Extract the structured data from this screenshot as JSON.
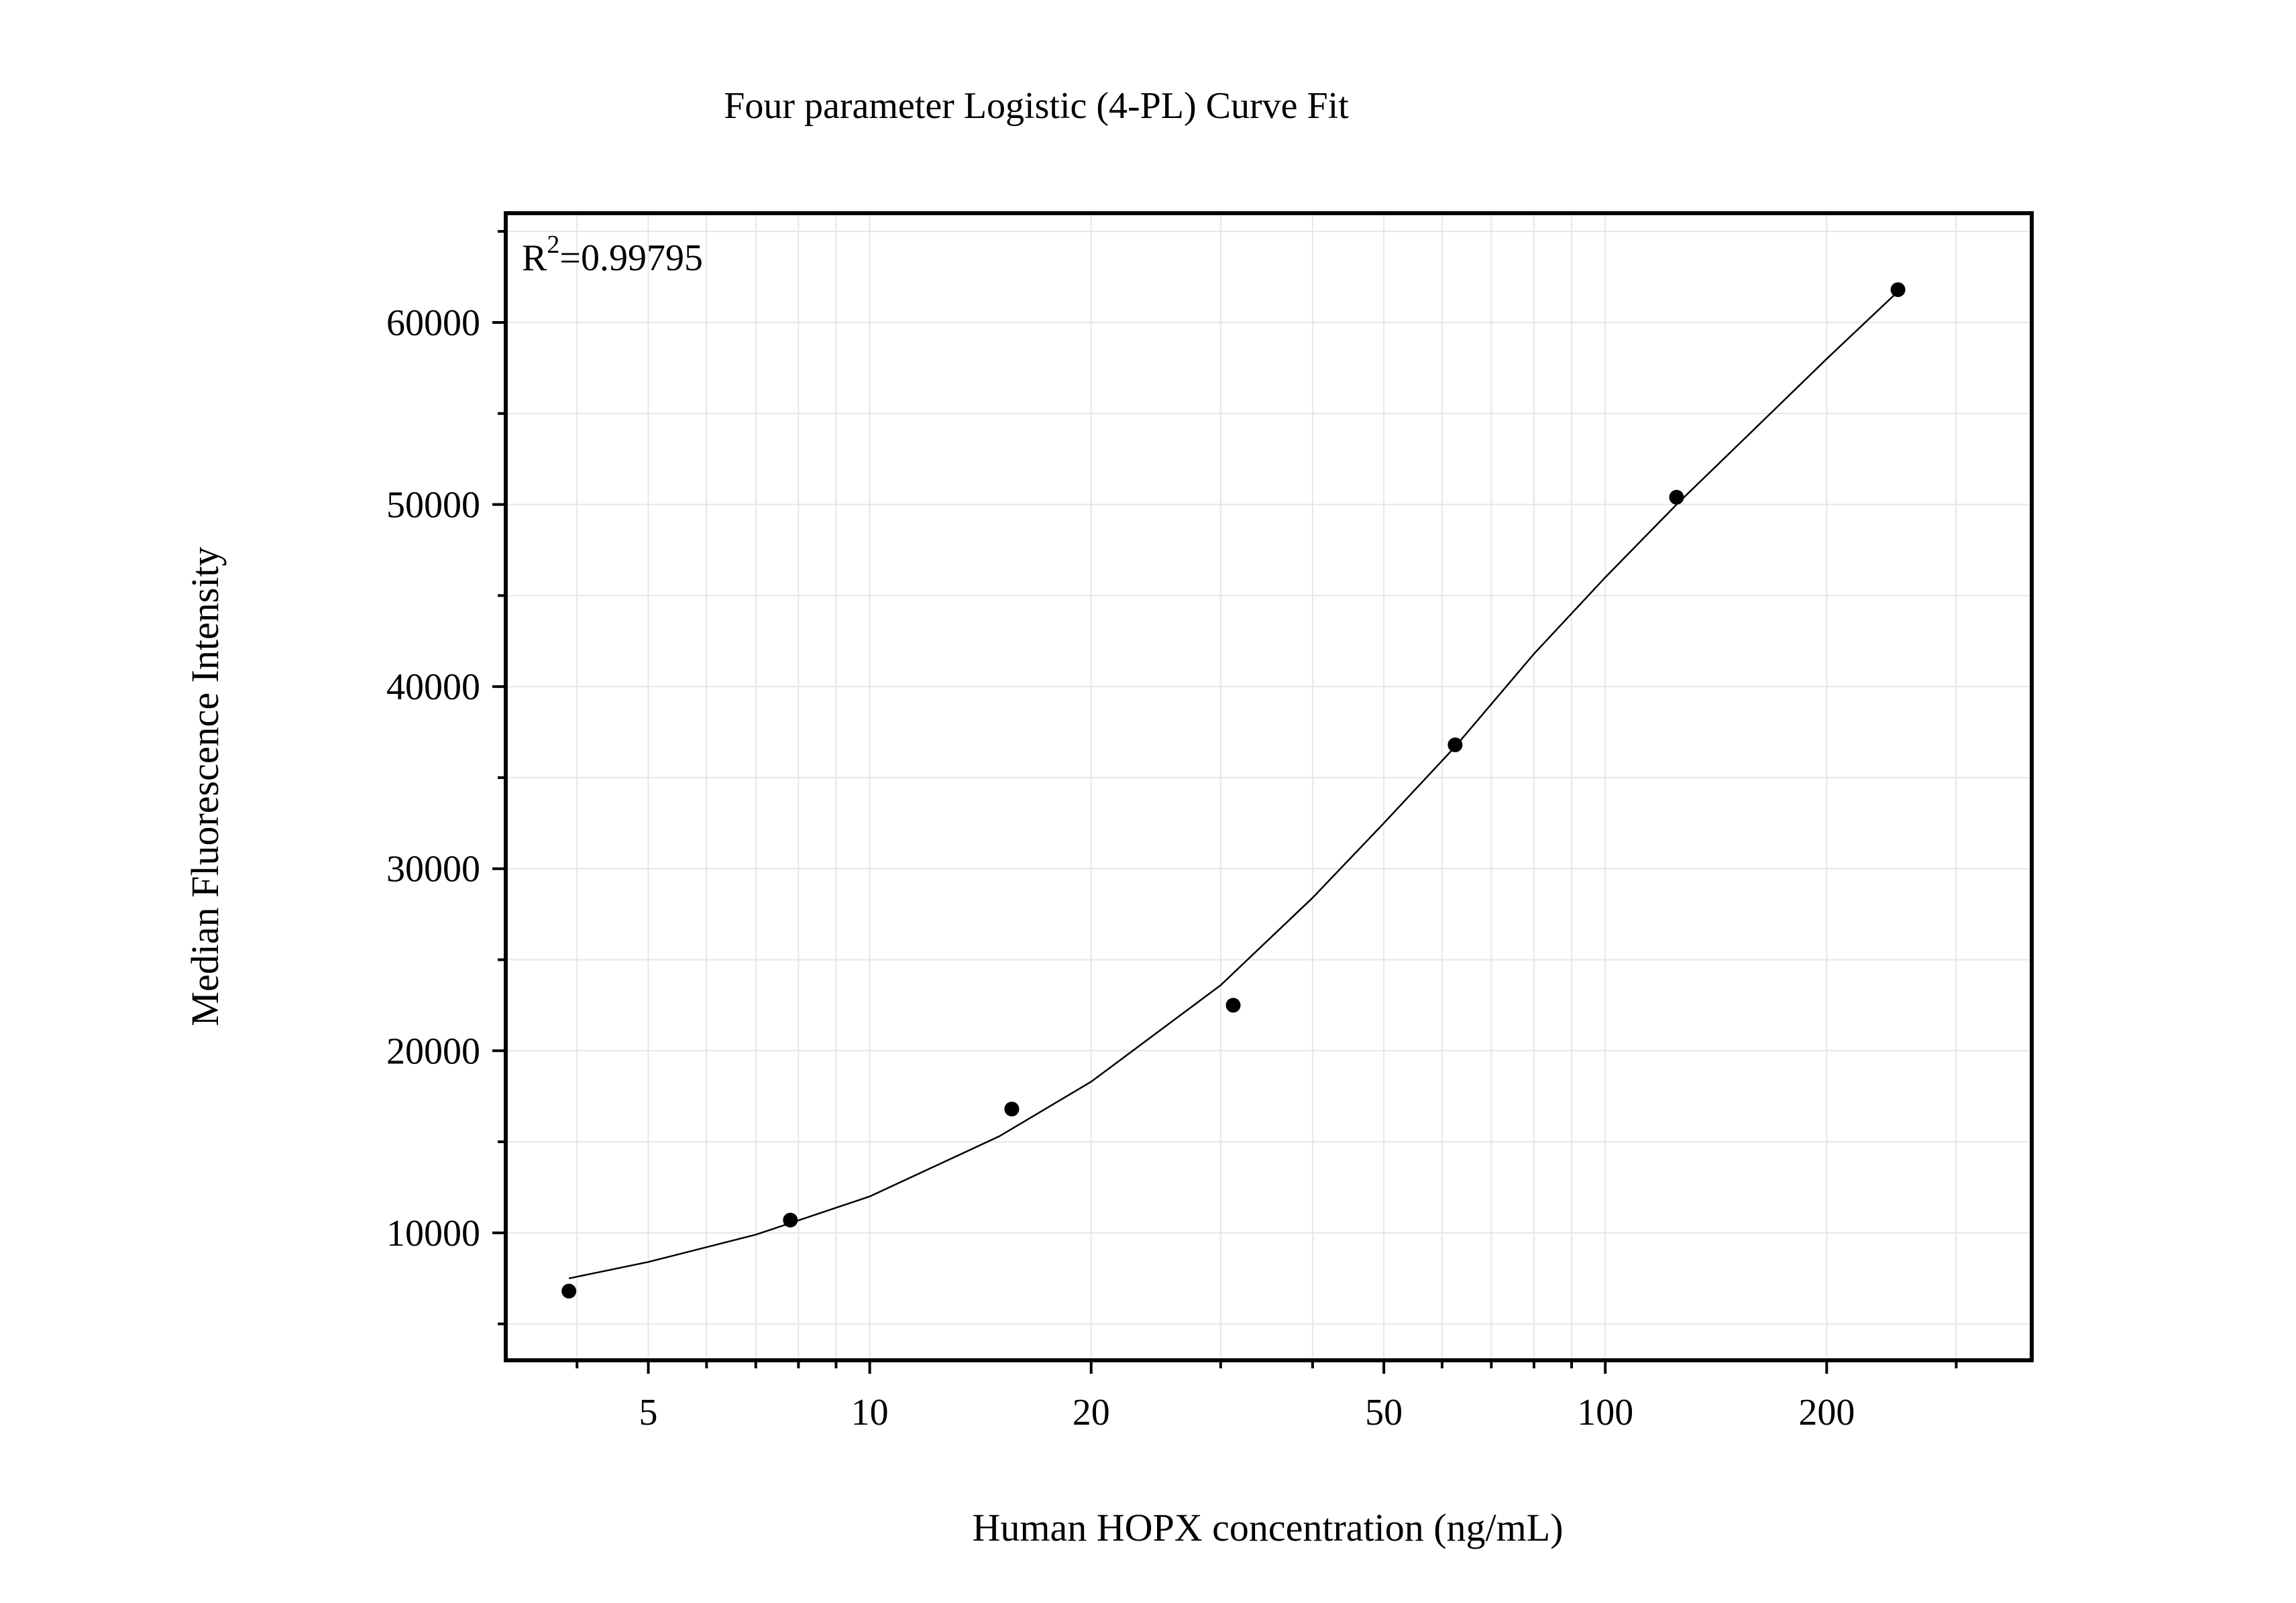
{
  "chart_data": {
    "type": "scatter",
    "title": "Four parameter Logistic (4-PL) Curve Fit",
    "xlabel": "Human HOPX concentration (ng/mL)",
    "ylabel": "Median Fluorescence Intensity",
    "x_scale": "log",
    "xlim": [
      3.2,
      380
    ],
    "ylim": [
      3000,
      66000
    ],
    "x_ticks": [
      5,
      10,
      20,
      50,
      100,
      200
    ],
    "y_ticks": [
      10000,
      20000,
      30000,
      40000,
      50000,
      60000
    ],
    "grid": true,
    "legend": "none",
    "annotation": {
      "r2_base": "R",
      "r2_sup": "2",
      "r2_value": "=0.99795"
    },
    "points": {
      "x": [
        3.9,
        7.8,
        15.6,
        31.2,
        62.5,
        125,
        250
      ],
      "y": [
        6800,
        10700,
        16800,
        22500,
        36800,
        50400,
        61800
      ]
    },
    "fit": {
      "x": [
        3.9,
        5,
        7,
        10,
        15,
        20,
        30,
        40,
        50,
        62.5,
        80,
        100,
        125,
        160,
        200,
        250
      ],
      "y": [
        7500,
        8400,
        9900,
        12000,
        15300,
        18300,
        23600,
        28400,
        32500,
        36700,
        41800,
        46000,
        50000,
        54200,
        58000,
        61700
      ]
    },
    "colors": {
      "axis": "#000000",
      "grid": "#e6e6e6",
      "points": "#000000",
      "line": "#000000"
    }
  }
}
